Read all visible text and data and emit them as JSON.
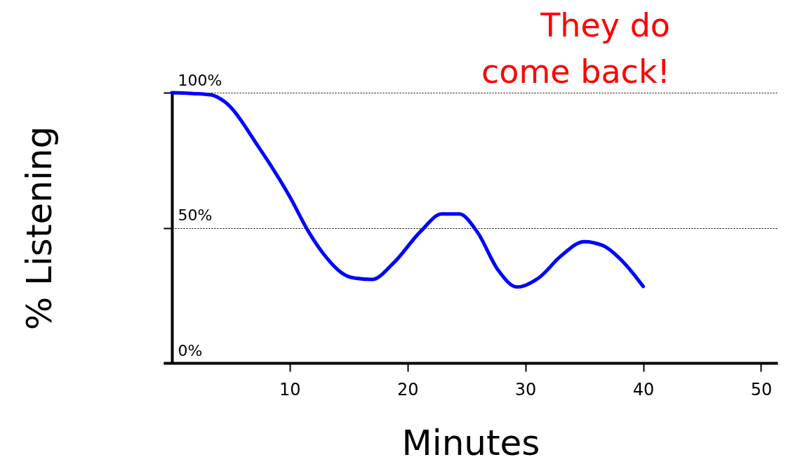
{
  "chart_data": {
    "type": "line",
    "xlabel": "Minutes",
    "ylabel": "% Listening",
    "annotations": [
      "They do\ncome back!"
    ],
    "x": [
      0,
      1.8,
      3.3,
      4.5,
      7.4,
      10,
      11.6,
      12.8,
      15.2,
      17,
      18.8,
      21.1,
      22.9,
      24.4,
      25.9,
      27.7,
      29.3,
      31.2,
      33,
      35,
      36.6,
      38.4,
      40
    ],
    "series": [
      {
        "color": "#0000ff",
        "values": [
          100,
          99.7,
          99.2,
          96.6,
          79.7,
          61.6,
          48.6,
          40.8,
          31.7,
          30.9,
          36.9,
          48.6,
          55.1,
          55.1,
          48.6,
          34.3,
          28.1,
          31.7,
          39.5,
          44.9,
          43.4,
          36.9,
          28.3
        ]
      }
    ],
    "xlim": [
      -0.7,
      51.4
    ],
    "ylim": [
      0,
      100
    ],
    "xticks": [
      10,
      20,
      30,
      40,
      50
    ],
    "yticks": [
      {
        "value": 0,
        "label": "0%"
      },
      {
        "value": 50,
        "label": "50%"
      },
      {
        "value": 100,
        "label": "100%"
      }
    ],
    "grid": "y"
  }
}
